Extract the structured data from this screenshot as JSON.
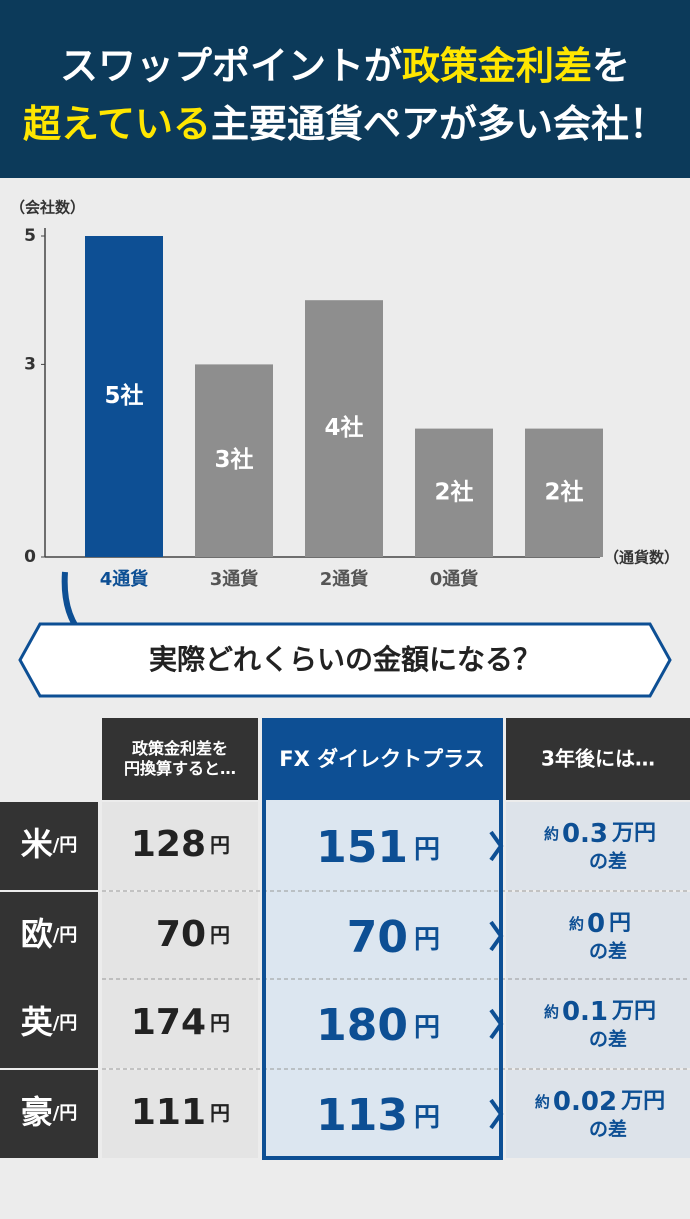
{
  "header": {
    "title": [
      "スワップポイントが",
      "政策金利差",
      "を",
      "超えている",
      "主要通貨ペアが多い会社！"
    ]
  },
  "chart_data": {
    "type": "bar",
    "y_label": "（会社数）",
    "x_label": "（通貨数）",
    "categories": [
      "4通貨",
      "3通貨",
      "2通貨",
      "0通貨",
      null
    ],
    "values": [
      5,
      3,
      4,
      2,
      2
    ],
    "value_labels": [
      "5社",
      "3社",
      "4社",
      "2社",
      "2社"
    ],
    "colors": [
      "#0d4f94",
      "#8e8e8e",
      "#8e8e8e",
      "#8e8e8e",
      "#8e8e8e"
    ],
    "ylim": [
      0,
      5
    ],
    "yticks": [
      0,
      3,
      5
    ]
  },
  "banner": "実際どれくらいの金額になる？",
  "table": {
    "header": [
      "政策金利差を円換算すると…",
      "FX ダイレクトプラス",
      "3年後には…"
    ],
    "rows": [
      {
        "pair": "米",
        "pair_suffix": "/円",
        "rate": 128,
        "rate_unit": "円",
        "fx": 151,
        "fx_unit": "円",
        "diff_prefix": "約",
        "diff": 0.3,
        "diff_unit": "万円",
        "diff_suffix": "の差"
      },
      {
        "pair": "欧",
        "pair_suffix": "/円",
        "rate": 70,
        "rate_unit": "円",
        "fx": 70,
        "fx_unit": "円",
        "diff_prefix": "約",
        "diff": 0,
        "diff_unit": "円",
        "diff_suffix": "の差"
      },
      {
        "pair": "英",
        "pair_suffix": "/円",
        "rate": 174,
        "rate_unit": "円",
        "fx": 180,
        "fx_unit": "円",
        "diff_prefix": "約",
        "diff": 0.1,
        "diff_unit": "万円",
        "diff_suffix": "の差"
      },
      {
        "pair": "豪",
        "pair_suffix": "/円",
        "rate": 111,
        "rate_unit": "円",
        "fx": 113,
        "fx_unit": "円",
        "diff_prefix": "約",
        "diff": 0.02,
        "diff_unit": "万円",
        "diff_suffix": "の差"
      }
    ]
  }
}
